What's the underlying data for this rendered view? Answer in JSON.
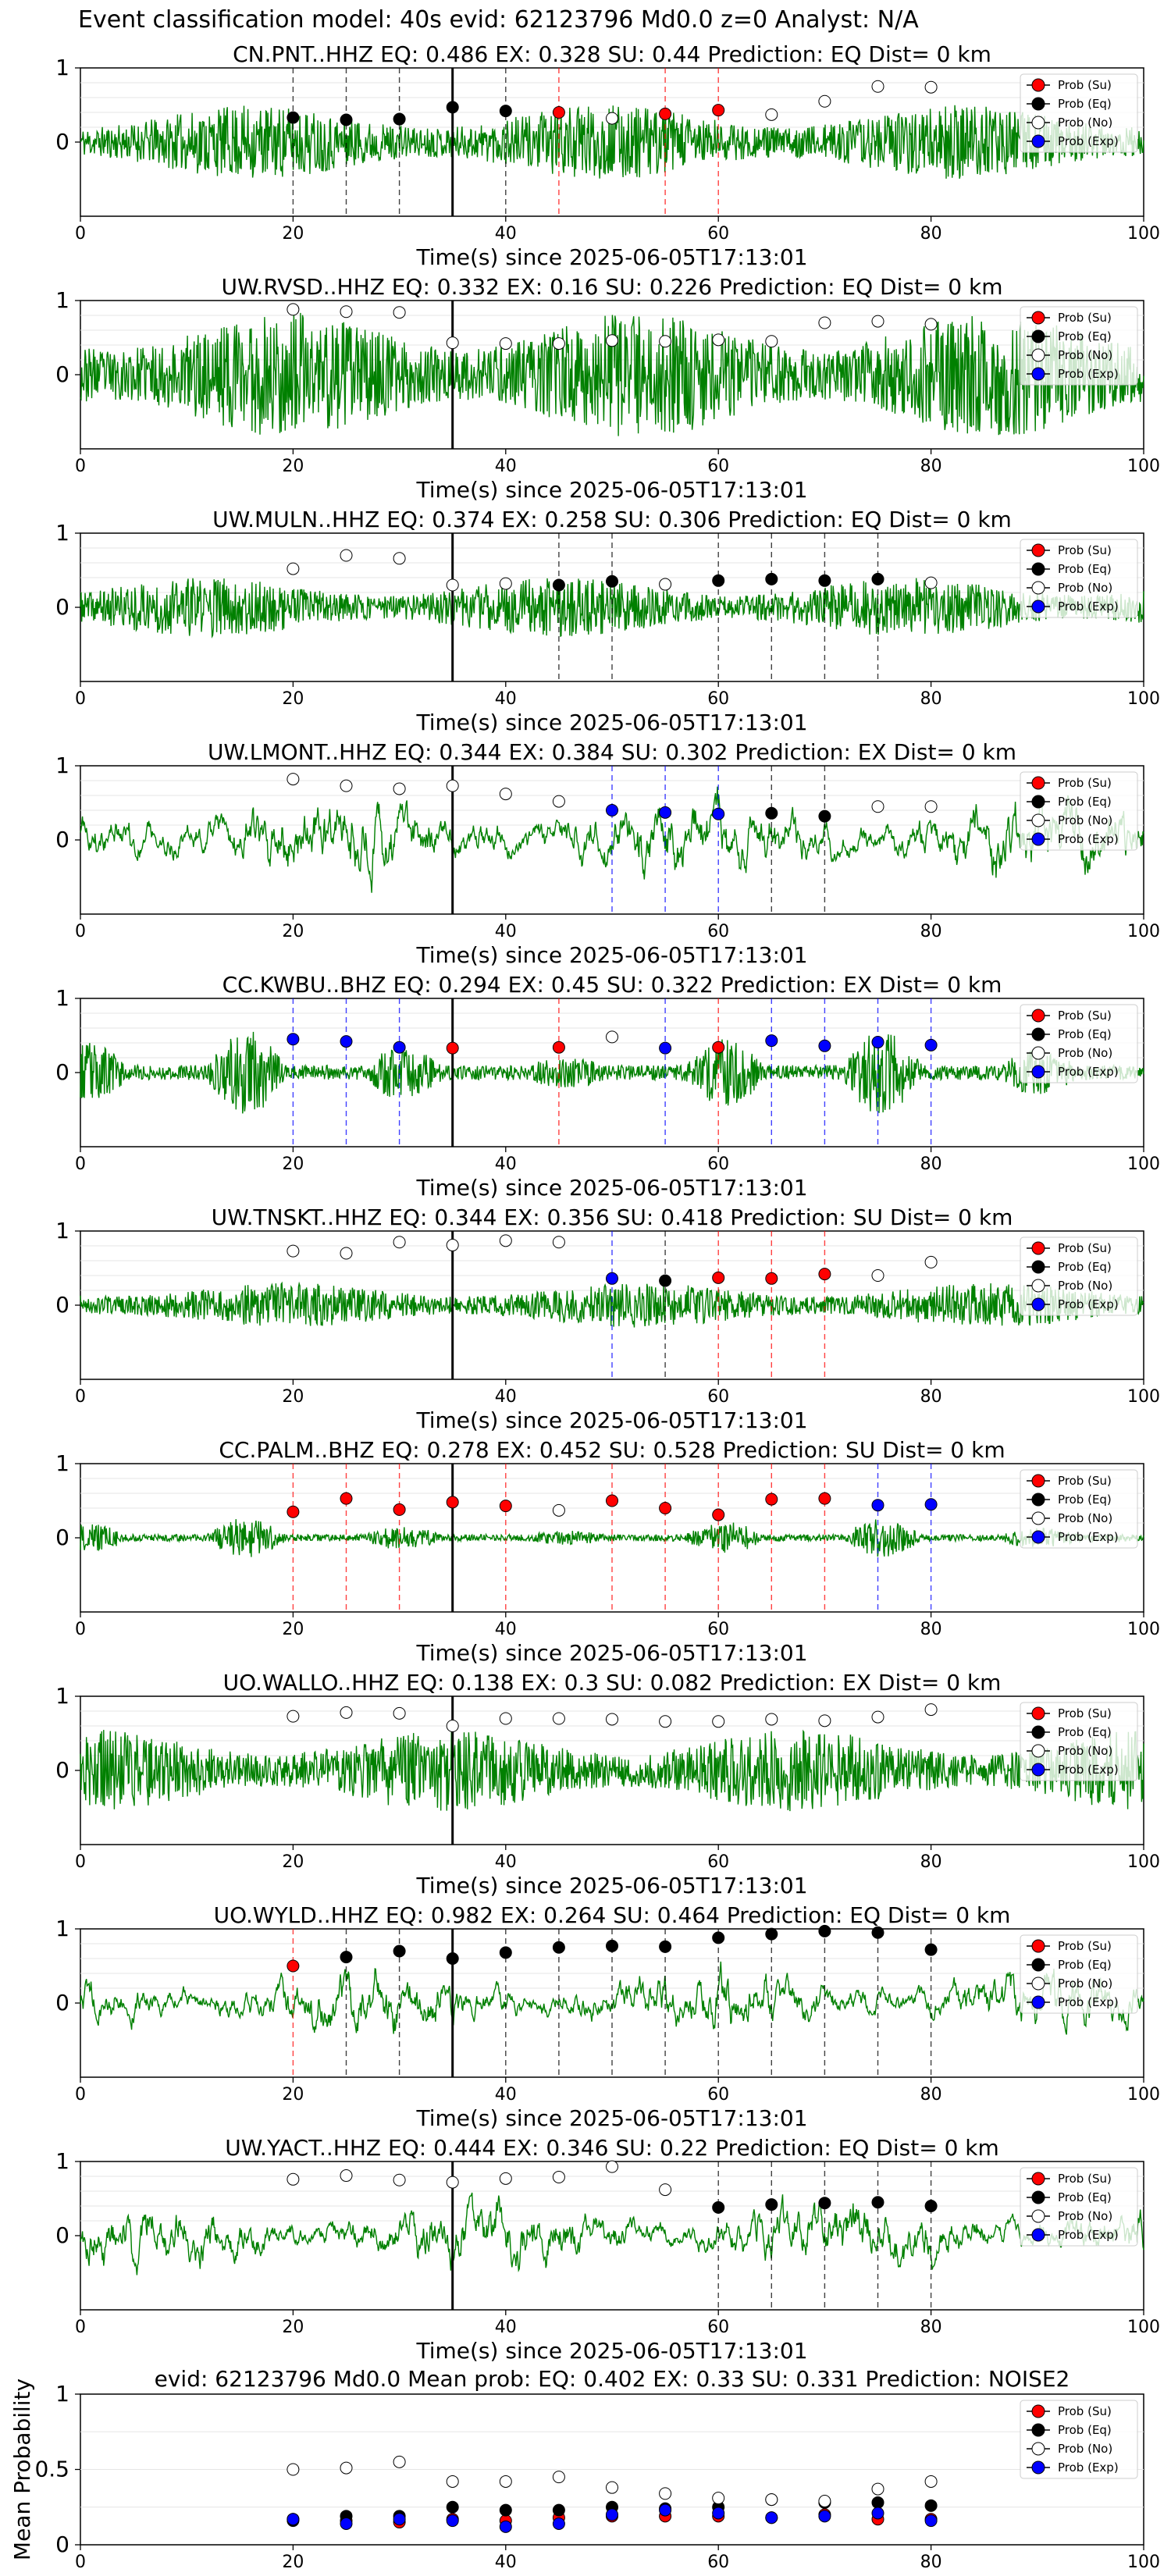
{
  "figure_title": "Event classification model: 40s evid: 62123796 Md0.0 z=0 Analyst: N/A",
  "colors": {
    "waveform": "#008000",
    "su": "#ff0000",
    "eq": "#000000",
    "no": "#ffffff",
    "exp": "#0000ff",
    "pick": "#000000"
  },
  "legend_labels": [
    "Prob (Su)",
    "Prob (Eq)",
    "Prob (No)",
    "Prob (Exp)"
  ],
  "chart_data": [
    {
      "type": "line",
      "station": "CN.PNT..HHZ",
      "title": "CN.PNT..HHZ   EQ: 0.486  EX: 0.328  SU: 0.44   Prediction: EQ    Dist= 0 km",
      "xlabel": "Time(s) since 2025-06-05T17:13:01",
      "xlim": [
        0,
        100
      ],
      "ylim": [
        -1,
        1
      ],
      "xticks": [
        0,
        20,
        40,
        60,
        80,
        100
      ],
      "yticks": [
        0,
        1
      ],
      "pick_time": 35,
      "waveform": {
        "amplitude": 0.5,
        "style": "broadband",
        "seed": 11
      },
      "windows": [
        {
          "t": 20,
          "class": "Eq",
          "prob": 0.33
        },
        {
          "t": 25,
          "class": "Eq",
          "prob": 0.3
        },
        {
          "t": 30,
          "class": "Eq",
          "prob": 0.31
        },
        {
          "t": 35,
          "class": "Eq",
          "prob": 0.47
        },
        {
          "t": 40,
          "class": "Eq",
          "prob": 0.42
        },
        {
          "t": 45,
          "class": "Su",
          "prob": 0.4
        },
        {
          "t": 50,
          "class": "No",
          "prob": 0.32
        },
        {
          "t": 55,
          "class": "Su",
          "prob": 0.38
        },
        {
          "t": 60,
          "class": "Su",
          "prob": 0.43
        },
        {
          "t": 65,
          "class": "No",
          "prob": 0.37
        },
        {
          "t": 70,
          "class": "No",
          "prob": 0.55
        },
        {
          "t": 75,
          "class": "No",
          "prob": 0.75
        },
        {
          "t": 80,
          "class": "No",
          "prob": 0.74
        }
      ]
    },
    {
      "type": "line",
      "station": "UW.RVSD..HHZ",
      "title": "UW.RVSD..HHZ   EQ: 0.332  EX: 0.16  SU: 0.226   Prediction: EQ    Dist= 0 km",
      "xlabel": "Time(s) since 2025-06-05T17:13:01",
      "xlim": [
        0,
        100
      ],
      "ylim": [
        -1,
        1
      ],
      "xticks": [
        0,
        20,
        40,
        60,
        80,
        100
      ],
      "yticks": [
        0,
        1
      ],
      "pick_time": 35,
      "waveform": {
        "amplitude": 0.85,
        "style": "broadband",
        "seed": 23
      },
      "windows": [
        {
          "t": 20,
          "class": "No",
          "prob": 0.88
        },
        {
          "t": 25,
          "class": "No",
          "prob": 0.85
        },
        {
          "t": 30,
          "class": "No",
          "prob": 0.84
        },
        {
          "t": 35,
          "class": "No",
          "prob": 0.43
        },
        {
          "t": 40,
          "class": "No",
          "prob": 0.42
        },
        {
          "t": 45,
          "class": "No",
          "prob": 0.42
        },
        {
          "t": 50,
          "class": "No",
          "prob": 0.46
        },
        {
          "t": 55,
          "class": "No",
          "prob": 0.45
        },
        {
          "t": 60,
          "class": "No",
          "prob": 0.47
        },
        {
          "t": 65,
          "class": "No",
          "prob": 0.45
        },
        {
          "t": 70,
          "class": "No",
          "prob": 0.7
        },
        {
          "t": 75,
          "class": "No",
          "prob": 0.72
        },
        {
          "t": 80,
          "class": "No",
          "prob": 0.68
        }
      ]
    },
    {
      "type": "line",
      "station": "UW.MULN..HHZ",
      "title": "UW.MULN..HHZ   EQ: 0.374  EX: 0.258  SU: 0.306   Prediction: EQ    Dist= 0 km",
      "xlabel": "Time(s) since 2025-06-05T17:13:01",
      "xlim": [
        0,
        100
      ],
      "ylim": [
        -1,
        1
      ],
      "xticks": [
        0,
        20,
        40,
        60,
        80,
        100
      ],
      "yticks": [
        0,
        1
      ],
      "pick_time": 35,
      "waveform": {
        "amplitude": 0.4,
        "style": "broadband",
        "seed": 37
      },
      "windows": [
        {
          "t": 20,
          "class": "No",
          "prob": 0.52
        },
        {
          "t": 25,
          "class": "No",
          "prob": 0.7
        },
        {
          "t": 30,
          "class": "No",
          "prob": 0.66
        },
        {
          "t": 35,
          "class": "No",
          "prob": 0.3
        },
        {
          "t": 40,
          "class": "No",
          "prob": 0.32
        },
        {
          "t": 45,
          "class": "Eq",
          "prob": 0.3
        },
        {
          "t": 50,
          "class": "Eq",
          "prob": 0.35
        },
        {
          "t": 55,
          "class": "No",
          "prob": 0.31
        },
        {
          "t": 60,
          "class": "Eq",
          "prob": 0.36
        },
        {
          "t": 65,
          "class": "Eq",
          "prob": 0.38
        },
        {
          "t": 70,
          "class": "Eq",
          "prob": 0.36
        },
        {
          "t": 75,
          "class": "Eq",
          "prob": 0.38
        },
        {
          "t": 80,
          "class": "No",
          "prob": 0.33
        }
      ]
    },
    {
      "type": "line",
      "station": "UW.LMONT..HHZ",
      "title": "UW.LMONT..HHZ   EQ: 0.344  EX: 0.384  SU: 0.302   Prediction: EX    Dist= 0 km",
      "xlabel": "Time(s) since 2025-06-05T17:13:01",
      "xlim": [
        0,
        100
      ],
      "ylim": [
        -1,
        1
      ],
      "xticks": [
        0,
        20,
        40,
        60,
        80,
        100
      ],
      "yticks": [
        0,
        1
      ],
      "pick_time": 35,
      "waveform": {
        "amplitude": 0.6,
        "style": "smooth",
        "seed": 41
      },
      "windows": [
        {
          "t": 20,
          "class": "No",
          "prob": 0.82
        },
        {
          "t": 25,
          "class": "No",
          "prob": 0.73
        },
        {
          "t": 30,
          "class": "No",
          "prob": 0.69
        },
        {
          "t": 35,
          "class": "No",
          "prob": 0.73
        },
        {
          "t": 40,
          "class": "No",
          "prob": 0.62
        },
        {
          "t": 45,
          "class": "No",
          "prob": 0.52
        },
        {
          "t": 50,
          "class": "Exp",
          "prob": 0.4
        },
        {
          "t": 55,
          "class": "Exp",
          "prob": 0.37
        },
        {
          "t": 60,
          "class": "Exp",
          "prob": 0.35
        },
        {
          "t": 65,
          "class": "Eq",
          "prob": 0.36
        },
        {
          "t": 70,
          "class": "Eq",
          "prob": 0.32
        },
        {
          "t": 75,
          "class": "No",
          "prob": 0.45
        },
        {
          "t": 80,
          "class": "No",
          "prob": 0.45
        }
      ]
    },
    {
      "type": "line",
      "station": "CC.KWBU..BHZ",
      "title": "CC.KWBU..BHZ   EQ: 0.294  EX: 0.45  SU: 0.322   Prediction: EX    Dist= 0 km",
      "xlabel": "Time(s) since 2025-06-05T17:13:01",
      "xlim": [
        0,
        100
      ],
      "ylim": [
        -1,
        1
      ],
      "xticks": [
        0,
        20,
        40,
        60,
        80,
        100
      ],
      "yticks": [
        0,
        1
      ],
      "pick_time": 35,
      "waveform": {
        "amplitude": 0.55,
        "style": "bursty",
        "seed": 53
      },
      "windows": [
        {
          "t": 20,
          "class": "Exp",
          "prob": 0.45
        },
        {
          "t": 25,
          "class": "Exp",
          "prob": 0.42
        },
        {
          "t": 30,
          "class": "Exp",
          "prob": 0.34
        },
        {
          "t": 35,
          "class": "Su",
          "prob": 0.33
        },
        {
          "t": 45,
          "class": "Su",
          "prob": 0.34
        },
        {
          "t": 50,
          "class": "No",
          "prob": 0.48
        },
        {
          "t": 55,
          "class": "Exp",
          "prob": 0.33
        },
        {
          "t": 60,
          "class": "Su",
          "prob": 0.34
        },
        {
          "t": 65,
          "class": "Exp",
          "prob": 0.43
        },
        {
          "t": 70,
          "class": "Exp",
          "prob": 0.36
        },
        {
          "t": 75,
          "class": "Exp",
          "prob": 0.41
        },
        {
          "t": 80,
          "class": "Exp",
          "prob": 0.37
        }
      ]
    },
    {
      "type": "line",
      "station": "UW.TNSKT..HHZ",
      "title": "UW.TNSKT..HHZ   EQ: 0.344  EX: 0.356  SU: 0.418   Prediction: SU    Dist= 0 km",
      "xlabel": "Time(s) since 2025-06-05T17:13:01",
      "xlim": [
        0,
        100
      ],
      "ylim": [
        -1,
        1
      ],
      "xticks": [
        0,
        20,
        40,
        60,
        80,
        100
      ],
      "yticks": [
        0,
        1
      ],
      "pick_time": 35,
      "waveform": {
        "amplitude": 0.3,
        "style": "broadband",
        "seed": 67
      },
      "windows": [
        {
          "t": 20,
          "class": "No",
          "prob": 0.73
        },
        {
          "t": 25,
          "class": "No",
          "prob": 0.7
        },
        {
          "t": 30,
          "class": "No",
          "prob": 0.85
        },
        {
          "t": 35,
          "class": "No",
          "prob": 0.81
        },
        {
          "t": 40,
          "class": "No",
          "prob": 0.87
        },
        {
          "t": 45,
          "class": "No",
          "prob": 0.85
        },
        {
          "t": 50,
          "class": "Exp",
          "prob": 0.36
        },
        {
          "t": 55,
          "class": "Eq",
          "prob": 0.33
        },
        {
          "t": 60,
          "class": "Su",
          "prob": 0.37
        },
        {
          "t": 65,
          "class": "Su",
          "prob": 0.36
        },
        {
          "t": 70,
          "class": "Su",
          "prob": 0.42
        },
        {
          "t": 75,
          "class": "No",
          "prob": 0.4
        },
        {
          "t": 80,
          "class": "No",
          "prob": 0.58
        }
      ]
    },
    {
      "type": "line",
      "station": "CC.PALM..BHZ",
      "title": "CC.PALM..BHZ   EQ: 0.278  EX: 0.452  SU: 0.528   Prediction: SU    Dist= 0 km",
      "xlabel": "Time(s) since 2025-06-05T17:13:01",
      "xlim": [
        0,
        100
      ],
      "ylim": [
        -1,
        1
      ],
      "xticks": [
        0,
        20,
        40,
        60,
        80,
        100
      ],
      "yticks": [
        0,
        1
      ],
      "pick_time": 35,
      "waveform": {
        "amplitude": 0.25,
        "style": "bursty",
        "seed": 79
      },
      "windows": [
        {
          "t": 20,
          "class": "Su",
          "prob": 0.35
        },
        {
          "t": 25,
          "class": "Su",
          "prob": 0.53
        },
        {
          "t": 30,
          "class": "Su",
          "prob": 0.38
        },
        {
          "t": 35,
          "class": "Su",
          "prob": 0.48
        },
        {
          "t": 40,
          "class": "Su",
          "prob": 0.43
        },
        {
          "t": 45,
          "class": "No",
          "prob": 0.37
        },
        {
          "t": 50,
          "class": "Su",
          "prob": 0.5
        },
        {
          "t": 55,
          "class": "Su",
          "prob": 0.4
        },
        {
          "t": 60,
          "class": "Su",
          "prob": 0.31
        },
        {
          "t": 65,
          "class": "Su",
          "prob": 0.52
        },
        {
          "t": 70,
          "class": "Su",
          "prob": 0.53
        },
        {
          "t": 75,
          "class": "Exp",
          "prob": 0.44
        },
        {
          "t": 80,
          "class": "Exp",
          "prob": 0.45
        }
      ]
    },
    {
      "type": "line",
      "station": "UO.WALLO..HHZ",
      "title": "UO.WALLO..HHZ   EQ: 0.138  EX: 0.3  SU: 0.082   Prediction: EX    Dist= 0 km",
      "xlabel": "Time(s) since 2025-06-05T17:13:01",
      "xlim": [
        0,
        100
      ],
      "ylim": [
        -1,
        1
      ],
      "xticks": [
        0,
        20,
        40,
        60,
        80,
        100
      ],
      "yticks": [
        0,
        1
      ],
      "pick_time": 35,
      "waveform": {
        "amplitude": 0.55,
        "style": "broadband",
        "seed": 83
      },
      "windows": [
        {
          "t": 20,
          "class": "No",
          "prob": 0.73
        },
        {
          "t": 25,
          "class": "No",
          "prob": 0.78
        },
        {
          "t": 30,
          "class": "No",
          "prob": 0.77
        },
        {
          "t": 35,
          "class": "No",
          "prob": 0.6
        },
        {
          "t": 40,
          "class": "No",
          "prob": 0.7
        },
        {
          "t": 45,
          "class": "No",
          "prob": 0.7
        },
        {
          "t": 50,
          "class": "No",
          "prob": 0.69
        },
        {
          "t": 55,
          "class": "No",
          "prob": 0.66
        },
        {
          "t": 60,
          "class": "No",
          "prob": 0.66
        },
        {
          "t": 65,
          "class": "No",
          "prob": 0.69
        },
        {
          "t": 70,
          "class": "No",
          "prob": 0.67
        },
        {
          "t": 75,
          "class": "No",
          "prob": 0.72
        },
        {
          "t": 80,
          "class": "No",
          "prob": 0.82
        }
      ]
    },
    {
      "type": "line",
      "station": "UO.WYLD..HHZ",
      "title": "UO.WYLD..HHZ   EQ: 0.982  EX: 0.264  SU: 0.464   Prediction: EQ    Dist= 0 km",
      "xlabel": "Time(s) since 2025-06-05T17:13:01",
      "xlim": [
        0,
        100
      ],
      "ylim": [
        -1,
        1
      ],
      "xticks": [
        0,
        20,
        40,
        60,
        80,
        100
      ],
      "yticks": [
        0,
        1
      ],
      "pick_time": 35,
      "waveform": {
        "amplitude": 0.45,
        "style": "smooth",
        "seed": 97
      },
      "windows": [
        {
          "t": 20,
          "class": "Su",
          "prob": 0.5
        },
        {
          "t": 25,
          "class": "Eq",
          "prob": 0.62
        },
        {
          "t": 30,
          "class": "Eq",
          "prob": 0.7
        },
        {
          "t": 35,
          "class": "Eq",
          "prob": 0.6
        },
        {
          "t": 40,
          "class": "Eq",
          "prob": 0.68
        },
        {
          "t": 45,
          "class": "Eq",
          "prob": 0.75
        },
        {
          "t": 50,
          "class": "Eq",
          "prob": 0.77
        },
        {
          "t": 55,
          "class": "Eq",
          "prob": 0.76
        },
        {
          "t": 60,
          "class": "Eq",
          "prob": 0.88
        },
        {
          "t": 65,
          "class": "Eq",
          "prob": 0.93
        },
        {
          "t": 70,
          "class": "Eq",
          "prob": 0.97
        },
        {
          "t": 75,
          "class": "Eq",
          "prob": 0.95
        },
        {
          "t": 80,
          "class": "Eq",
          "prob": 0.72
        }
      ]
    },
    {
      "type": "line",
      "station": "UW.YACT..HHZ",
      "title": "UW.YACT..HHZ   EQ: 0.444  EX: 0.346  SU: 0.22   Prediction: EQ    Dist= 0 km",
      "xlabel": "Time(s) since 2025-06-05T17:13:01",
      "xlim": [
        0,
        100
      ],
      "ylim": [
        -1,
        1
      ],
      "xticks": [
        0,
        20,
        40,
        60,
        80,
        100
      ],
      "yticks": [
        0,
        1
      ],
      "pick_time": 35,
      "waveform": {
        "amplitude": 0.5,
        "style": "smooth",
        "seed": 101
      },
      "windows": [
        {
          "t": 20,
          "class": "No",
          "prob": 0.76
        },
        {
          "t": 25,
          "class": "No",
          "prob": 0.81
        },
        {
          "t": 30,
          "class": "No",
          "prob": 0.75
        },
        {
          "t": 35,
          "class": "No",
          "prob": 0.72
        },
        {
          "t": 40,
          "class": "No",
          "prob": 0.77
        },
        {
          "t": 45,
          "class": "No",
          "prob": 0.79
        },
        {
          "t": 50,
          "class": "No",
          "prob": 0.93
        },
        {
          "t": 55,
          "class": "No",
          "prob": 0.62
        },
        {
          "t": 60,
          "class": "Eq",
          "prob": 0.38
        },
        {
          "t": 65,
          "class": "Eq",
          "prob": 0.42
        },
        {
          "t": 70,
          "class": "Eq",
          "prob": 0.44
        },
        {
          "t": 75,
          "class": "Eq",
          "prob": 0.45
        },
        {
          "t": 80,
          "class": "Eq",
          "prob": 0.4
        }
      ]
    },
    {
      "type": "scatter",
      "title": "evid: 62123796   Md0.0   Mean prob:   EQ: 0.402  EX: 0.33  SU: 0.331   Prediction: NOISE2",
      "ylabel": "Mean Probability",
      "xlabel": "",
      "xlim": [
        0,
        100
      ],
      "ylim": [
        0,
        1
      ],
      "xticks": [
        0,
        20,
        40,
        60,
        80,
        100
      ],
      "yticks": [
        0.0,
        0.5,
        1.0
      ],
      "x": [
        20,
        25,
        30,
        35,
        40,
        45,
        50,
        55,
        60,
        65,
        70,
        75,
        80
      ],
      "series": [
        {
          "name": "Prob (Su)",
          "values": [
            0.17,
            0.16,
            0.15,
            0.17,
            0.16,
            0.18,
            0.19,
            0.19,
            0.19,
            0.18,
            0.2,
            0.17,
            0.17
          ]
        },
        {
          "name": "Prob (Eq)",
          "values": [
            0.16,
            0.19,
            0.19,
            0.25,
            0.23,
            0.23,
            0.25,
            0.24,
            0.25,
            0.3,
            0.28,
            0.28,
            0.26
          ]
        },
        {
          "name": "Prob (No)",
          "values": [
            0.5,
            0.51,
            0.55,
            0.42,
            0.42,
            0.45,
            0.38,
            0.34,
            0.31,
            0.3,
            0.29,
            0.37,
            0.42
          ]
        },
        {
          "name": "Prob (Exp)",
          "values": [
            0.17,
            0.14,
            0.17,
            0.16,
            0.12,
            0.14,
            0.2,
            0.23,
            0.21,
            0.18,
            0.19,
            0.21,
            0.16
          ]
        }
      ]
    }
  ]
}
